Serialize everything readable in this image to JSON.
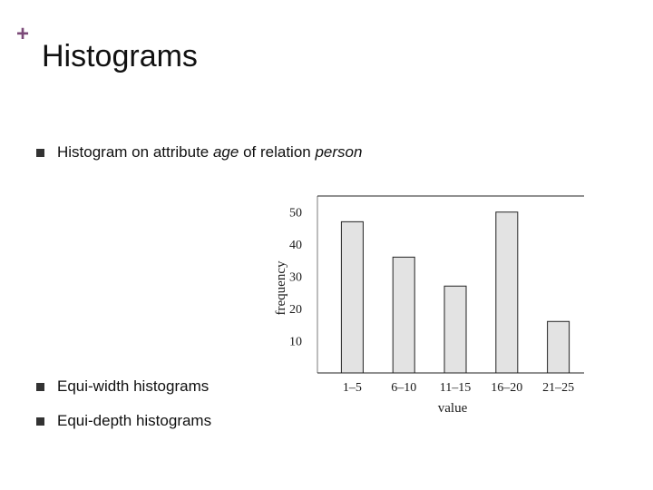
{
  "slide": {
    "plus": "+",
    "title": "Histograms",
    "bullets": [
      {
        "prefix": "Histogram on attribute ",
        "em1": "age",
        "mid": " of relation ",
        "em2": "person"
      },
      {
        "text": "Equi-width histograms"
      },
      {
        "text": "Equi-depth histograms"
      }
    ]
  },
  "chart_data": {
    "type": "bar",
    "categories": [
      "1–5",
      "6–10",
      "11–15",
      "16–20",
      "21–25"
    ],
    "values": [
      47,
      36,
      27,
      50,
      16
    ],
    "xlabel": "value",
    "ylabel": "frequency",
    "yticks": [
      10,
      20,
      30,
      40,
      50
    ],
    "ylim": [
      0,
      55
    ],
    "grid": false,
    "bar_color": "#e3e3e3",
    "bar_edge_color": "#222222"
  },
  "colors": {
    "accent": "#7b4a78"
  }
}
